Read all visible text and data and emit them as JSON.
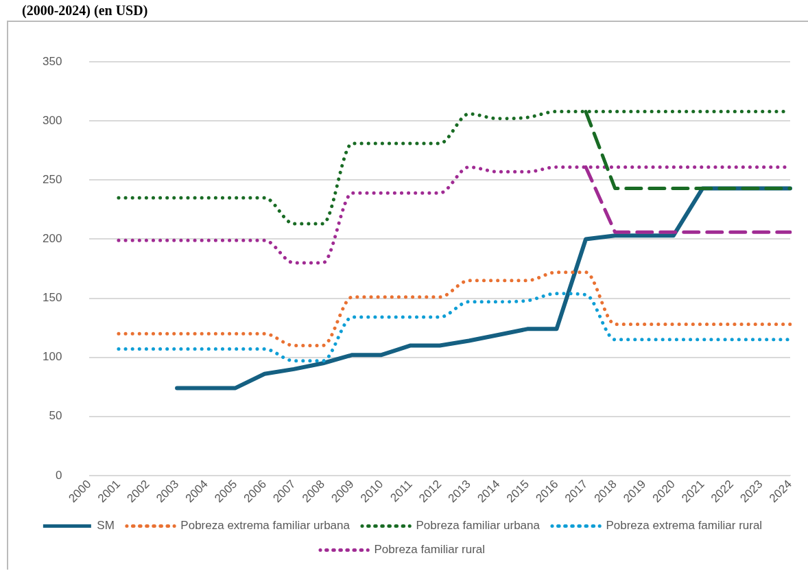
{
  "chart_data": {
    "type": "line",
    "title": "(2000-2024) (en USD)",
    "categories": [
      "2000",
      "2001",
      "2002",
      "2003",
      "2004",
      "2005",
      "2006",
      "2007",
      "2008",
      "2009",
      "2010",
      "2011",
      "2012",
      "2013",
      "2014",
      "2015",
      "2016",
      "2017",
      "2018",
      "2019",
      "2020",
      "2021",
      "2022",
      "2023",
      "2024"
    ],
    "series": [
      {
        "name": "SM",
        "color": "#156082",
        "line_style": "solid",
        "values": [
          null,
          null,
          null,
          74,
          74,
          74,
          86,
          90,
          95,
          102,
          102,
          110,
          110,
          114,
          119,
          124,
          124,
          200,
          203,
          203,
          203,
          243,
          243,
          243,
          243
        ]
      },
      {
        "name": "Pobreza extrema familiar urbana",
        "color": "#e97132",
        "line_style": "dotted",
        "values": [
          null,
          120,
          120,
          120,
          120,
          120,
          120,
          110,
          110,
          151,
          151,
          151,
          151,
          165,
          165,
          165,
          172,
          172,
          128,
          128,
          128,
          128,
          128,
          128,
          128
        ]
      },
      {
        "name": "Pobreza familiar urbana",
        "color": "#196b24",
        "line_style": "dotted",
        "values": [
          null,
          235,
          235,
          235,
          235,
          235,
          235,
          213,
          213,
          281,
          281,
          281,
          281,
          306,
          302,
          303,
          308,
          308,
          308,
          308,
          308,
          308,
          308,
          308,
          308
        ]
      },
      {
        "name": "Pobreza extrema familiar rural",
        "color": "#0f9ed5",
        "line_style": "dotted",
        "values": [
          null,
          107,
          107,
          107,
          107,
          107,
          107,
          97,
          97,
          134,
          134,
          134,
          134,
          147,
          147,
          148,
          154,
          153,
          115,
          115,
          115,
          115,
          115,
          115,
          115
        ]
      },
      {
        "name": "Pobreza familiar rural",
        "color": "#a02b93",
        "line_style": "dotted",
        "values": [
          null,
          199,
          199,
          199,
          199,
          199,
          199,
          180,
          180,
          239,
          239,
          239,
          239,
          261,
          257,
          257,
          261,
          261,
          261,
          261,
          261,
          261,
          261,
          261,
          261
        ]
      },
      {
        "color": "#196b24",
        "line_style": "dashed",
        "values": [
          null,
          null,
          null,
          null,
          null,
          null,
          null,
          null,
          null,
          null,
          null,
          null,
          null,
          null,
          null,
          null,
          null,
          308,
          243,
          243,
          243,
          243,
          243,
          243,
          243
        ]
      },
      {
        "color": "#a02b93",
        "line_style": "dashed",
        "values": [
          null,
          null,
          null,
          null,
          null,
          null,
          null,
          null,
          null,
          null,
          null,
          null,
          null,
          null,
          null,
          null,
          null,
          261,
          206,
          206,
          206,
          206,
          206,
          206,
          206
        ]
      }
    ],
    "ylim": [
      0,
      350
    ],
    "yticks": [
      0,
      50,
      100,
      150,
      200,
      250,
      300,
      350
    ],
    "grid": "y",
    "legend": "bottom",
    "marker": "none"
  }
}
